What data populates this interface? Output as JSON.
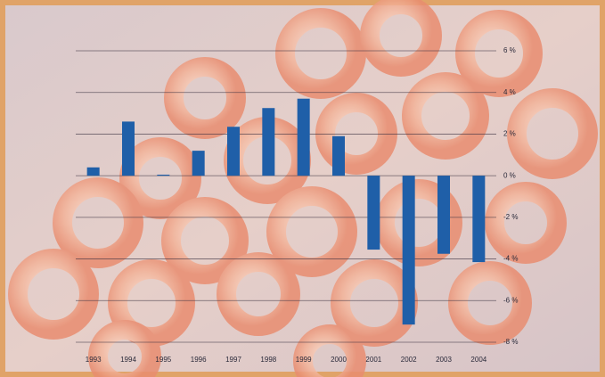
{
  "chart_data": {
    "type": "bar",
    "categories": [
      "1993",
      "1994",
      "1995",
      "1996",
      "1997",
      "1998",
      "1999",
      "2000",
      "2001",
      "2002",
      "2003",
      "2004"
    ],
    "values": [
      0.4,
      2.6,
      0.05,
      1.2,
      2.35,
      3.25,
      3.7,
      1.9,
      -3.55,
      -7.15,
      -3.75,
      -4.15
    ],
    "color": "#1f5fa8",
    "ylim": [
      -8,
      6
    ],
    "yticks": [
      {
        "value": 6,
        "label": "6 %"
      },
      {
        "value": 4,
        "label": "4 %"
      },
      {
        "value": 2,
        "label": "2 %"
      },
      {
        "value": 0,
        "label": "0 %"
      },
      {
        "value": -2,
        "label": "-2 %"
      },
      {
        "value": -4,
        "label": "-4 %"
      },
      {
        "value": -6,
        "label": "-6 %"
      },
      {
        "value": -8,
        "label": "-8 %"
      }
    ],
    "grid": true
  }
}
